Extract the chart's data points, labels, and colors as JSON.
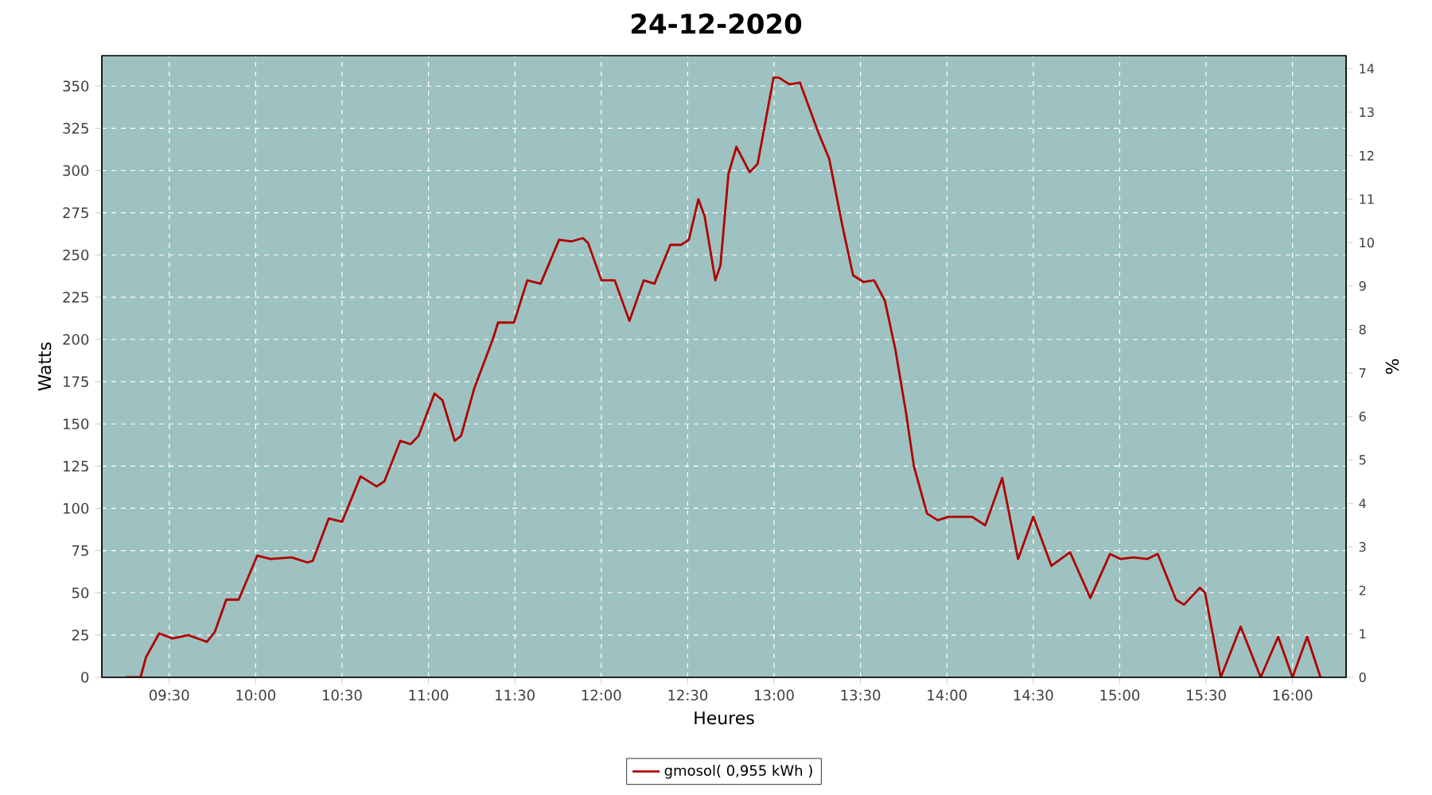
{
  "chart_data": {
    "type": "line",
    "title": "24-12-2020",
    "xlabel": "Heures",
    "ylabel": "Watts",
    "y2label": "%",
    "series": [
      {
        "name": "gmosol( 0,955 kWh )",
        "color": "#b00000",
        "x": [
          9.25,
          9.334,
          9.366,
          9.442,
          9.518,
          9.61,
          9.718,
          9.764,
          9.83,
          9.902,
          10.009,
          10.086,
          10.208,
          10.3,
          10.331,
          10.423,
          10.5,
          10.607,
          10.7,
          10.745,
          10.837,
          10.897,
          10.943,
          11.035,
          11.081,
          11.152,
          11.189,
          11.265,
          11.372,
          11.403,
          11.495,
          11.572,
          11.649,
          11.756,
          11.826,
          11.894,
          11.924,
          12.001,
          12.078,
          12.163,
          12.246,
          12.308,
          12.4,
          12.461,
          12.507,
          12.562,
          12.598,
          12.66,
          12.69,
          12.736,
          12.782,
          12.859,
          12.905,
          12.997,
          13.028,
          13.089,
          13.15,
          13.258,
          13.319,
          13.396,
          13.457,
          13.518,
          13.579,
          13.641,
          13.702,
          13.763,
          13.809,
          13.885,
          13.947,
          14.008,
          14.146,
          14.222,
          14.32,
          14.412,
          14.5,
          14.605,
          14.713,
          14.83,
          14.944,
          15.005,
          15.08,
          15.159,
          15.22,
          15.326,
          15.372,
          15.464,
          15.494,
          15.585,
          15.7,
          15.816,
          15.917,
          16.0,
          16.085,
          16.162
        ],
        "values": [
          0,
          0,
          12,
          26,
          23,
          25,
          21,
          27,
          46,
          46,
          72,
          70,
          71,
          68,
          69,
          94,
          92,
          119,
          113,
          116,
          140,
          138,
          143,
          168,
          164,
          140,
          143,
          171,
          200,
          210,
          210,
          235,
          233,
          259,
          258,
          260,
          257,
          235,
          235,
          211,
          235,
          233,
          256,
          256,
          259,
          283,
          273,
          235,
          244,
          298,
          314,
          299,
          304,
          355,
          355,
          351,
          352,
          322,
          307,
          267,
          238,
          234,
          235,
          223,
          194,
          157,
          125,
          97,
          93,
          95,
          95,
          90,
          118,
          70,
          95,
          66,
          74,
          47,
          73,
          70,
          71,
          70,
          73,
          46,
          43,
          53,
          50,
          0,
          30,
          0,
          24,
          0,
          24,
          0
        ]
      }
    ],
    "xlim": [
      9.11,
      16.31
    ],
    "xticks": [
      {
        "value": 9.5,
        "label": "09:30"
      },
      {
        "value": 10,
        "label": "10:00"
      },
      {
        "value": 10.5,
        "label": "10:30"
      },
      {
        "value": 11,
        "label": "11:00"
      },
      {
        "value": 11.5,
        "label": "11:30"
      },
      {
        "value": 12,
        "label": "12:00"
      },
      {
        "value": 12.5,
        "label": "12:30"
      },
      {
        "value": 13,
        "label": "13:00"
      },
      {
        "value": 13.5,
        "label": "13:30"
      },
      {
        "value": 14,
        "label": "14:00"
      },
      {
        "value": 14.5,
        "label": "14:30"
      },
      {
        "value": 15,
        "label": "15:00"
      },
      {
        "value": 15.5,
        "label": "15:30"
      },
      {
        "value": 16,
        "label": "16:00"
      }
    ],
    "ylim": [
      0,
      368
    ],
    "yticks": [
      0,
      25,
      50,
      75,
      100,
      125,
      150,
      175,
      200,
      225,
      250,
      275,
      300,
      325,
      350
    ],
    "y2lim": [
      0,
      14.3
    ],
    "y2ticks": [
      0,
      1,
      2,
      3,
      4,
      5,
      6,
      7,
      8,
      9,
      10,
      11,
      12,
      13,
      14
    ],
    "grid": true,
    "legend": "bottom",
    "line_style": "solid",
    "marker": "none"
  }
}
